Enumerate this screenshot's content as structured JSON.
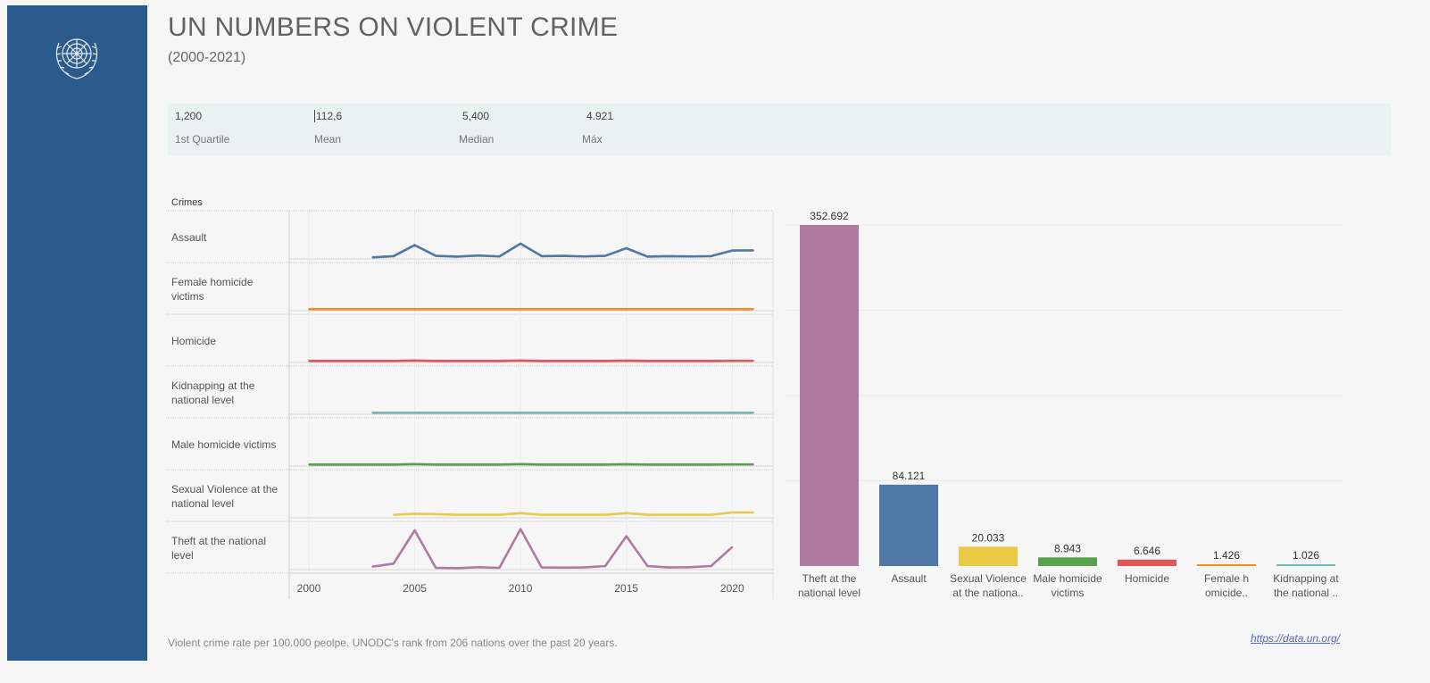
{
  "header": {
    "title": "UN NUMBERS ON VIOLENT CRIME",
    "subtitle": "(2000-2021)"
  },
  "kpis": [
    {
      "value": "1,200",
      "label": "1st Quartile"
    },
    {
      "value": "112,6",
      "label": "Mean"
    },
    {
      "value": "5,400",
      "label": "Median"
    },
    {
      "value": "4.921",
      "label": "Máx"
    }
  ],
  "crimes_header": "Crimes",
  "footer": {
    "note": "Violent crime rate per 100.000 peolpe. UNODC's rank from 206 nations over the past 20 years.",
    "link": "https://data.un.org/"
  },
  "colors": {
    "sidebar": "#2b5b8c",
    "kpi_band": "#e9f2f1"
  },
  "chart_data": [
    {
      "type": "line",
      "title": "",
      "x_ticks": [
        2000,
        2005,
        2010,
        2015,
        2020
      ],
      "xlim": [
        1999,
        2022
      ],
      "grid": true,
      "series": [
        {
          "name": "Assault",
          "label_lines": [
            "Assault"
          ],
          "color": "#4e79a7",
          "x": [
            2003,
            2004,
            2005,
            2006,
            2007,
            2008,
            2009,
            2010,
            2011,
            2012,
            2013,
            2014,
            2015,
            2016,
            2017,
            2018,
            2019,
            2020,
            2021
          ],
          "values": [
            1.0,
            1.8,
            9.0,
            2.0,
            1.5,
            2.2,
            1.6,
            10.0,
            1.8,
            2.0,
            1.6,
            2.0,
            7.0,
            1.5,
            1.8,
            1.6,
            1.8,
            5.5,
            5.6
          ],
          "ylim": [
            0,
            28
          ]
        },
        {
          "name": "Female homicide victims",
          "label_lines": [
            "Female homicide",
            "victims"
          ],
          "color": "#f28e2b",
          "x": [
            2000,
            2001,
            2002,
            2003,
            2004,
            2005,
            2006,
            2007,
            2008,
            2009,
            2010,
            2011,
            2012,
            2013,
            2014,
            2015,
            2016,
            2017,
            2018,
            2019,
            2020,
            2021
          ],
          "values": [
            1.0,
            1.0,
            1.0,
            1.0,
            1.0,
            1.0,
            1.0,
            1.0,
            1.0,
            1.0,
            1.0,
            1.0,
            1.0,
            1.0,
            1.0,
            1.0,
            1.0,
            1.0,
            1.0,
            1.0,
            1.0,
            1.0
          ],
          "ylim": [
            0,
            28
          ]
        },
        {
          "name": "Homicide",
          "label_lines": [
            "Homicide"
          ],
          "color": "#e15759",
          "x": [
            2000,
            2001,
            2002,
            2003,
            2004,
            2005,
            2006,
            2007,
            2008,
            2009,
            2010,
            2011,
            2012,
            2013,
            2014,
            2015,
            2016,
            2017,
            2018,
            2019,
            2020,
            2021
          ],
          "values": [
            1.0,
            1.0,
            1.0,
            1.0,
            1.0,
            1.3,
            1.0,
            1.0,
            1.0,
            1.0,
            1.3,
            1.0,
            1.0,
            1.0,
            1.0,
            1.2,
            1.0,
            1.0,
            1.0,
            1.0,
            1.1,
            1.1
          ],
          "ylim": [
            0,
            28
          ]
        },
        {
          "name": "Kidnapping at the national level",
          "label_lines": [
            "Kidnapping at the",
            "national level"
          ],
          "color": "#76b7b2",
          "x": [
            2003,
            2004,
            2005,
            2006,
            2007,
            2008,
            2009,
            2010,
            2011,
            2012,
            2013,
            2014,
            2015,
            2016,
            2017,
            2018,
            2019,
            2020,
            2021
          ],
          "values": [
            1.0,
            1.0,
            1.0,
            1.0,
            1.0,
            1.0,
            1.0,
            1.0,
            1.0,
            1.0,
            1.0,
            1.0,
            1.0,
            1.0,
            1.0,
            1.0,
            1.0,
            1.0,
            1.0
          ],
          "ylim": [
            0,
            28
          ]
        },
        {
          "name": "Male homicide victims",
          "label_lines": [
            "Male homicide victims"
          ],
          "color": "#59a14f",
          "x": [
            2000,
            2001,
            2002,
            2003,
            2004,
            2005,
            2006,
            2007,
            2008,
            2009,
            2010,
            2011,
            2012,
            2013,
            2014,
            2015,
            2016,
            2017,
            2018,
            2019,
            2020,
            2021
          ],
          "values": [
            1.0,
            1.0,
            1.0,
            1.0,
            1.0,
            1.3,
            1.0,
            1.0,
            1.0,
            1.0,
            1.3,
            1.0,
            1.0,
            1.0,
            1.0,
            1.2,
            1.0,
            1.0,
            1.0,
            1.0,
            1.1,
            1.1
          ],
          "ylim": [
            0,
            28
          ]
        },
        {
          "name": "Sexual Violence at the national level",
          "label_lines": [
            "Sexual Violence at the",
            "national level"
          ],
          "color": "#edc948",
          "x": [
            2004,
            2005,
            2006,
            2007,
            2008,
            2009,
            2010,
            2011,
            2012,
            2013,
            2014,
            2015,
            2016,
            2017,
            2018,
            2019,
            2020,
            2021
          ],
          "values": [
            2.0,
            2.6,
            2.4,
            2.0,
            2.0,
            2.0,
            3.0,
            2.0,
            2.0,
            2.0,
            2.0,
            3.0,
            2.0,
            2.0,
            2.0,
            2.0,
            3.5,
            3.5
          ],
          "ylim": [
            0,
            28
          ]
        },
        {
          "name": "Theft at the national level",
          "label_lines": [
            "Theft at the national",
            "level"
          ],
          "color": "#b07aa1",
          "x": [
            2003,
            2004,
            2005,
            2006,
            2007,
            2008,
            2009,
            2010,
            2011,
            2012,
            2013,
            2014,
            2015,
            2016,
            2017,
            2018,
            2019,
            2020
          ],
          "values": [
            2.5,
            5.0,
            33.0,
            1.5,
            1.2,
            2.0,
            1.5,
            34.0,
            1.8,
            1.7,
            1.8,
            3.0,
            28.0,
            3.0,
            1.8,
            2.0,
            3.0,
            19.0
          ],
          "ylim": [
            0,
            36
          ]
        }
      ]
    },
    {
      "type": "bar",
      "title": "",
      "categories": [
        [
          "Theft at the",
          "national level"
        ],
        [
          "Assault"
        ],
        [
          "Sexual Violence",
          "at the nationa.."
        ],
        [
          "Male homicide",
          "victims"
        ],
        [
          "Homicide"
        ],
        [
          "Female h",
          "omicide.."
        ],
        [
          "Kidnapping at",
          "the national .."
        ]
      ],
      "values": [
        352692,
        84121,
        20033,
        8943,
        6646,
        1426,
        1026
      ],
      "value_labels": [
        "352.692",
        "84.121",
        "20.033",
        "8.943",
        "6.646",
        "1.426",
        "1.026"
      ],
      "colors": [
        "#b07aa1",
        "#4e79a7",
        "#edc948",
        "#59a14f",
        "#e15759",
        "#f28e2b",
        "#76b7b2"
      ],
      "ylim": [
        0,
        360000
      ],
      "grid": true
    }
  ]
}
